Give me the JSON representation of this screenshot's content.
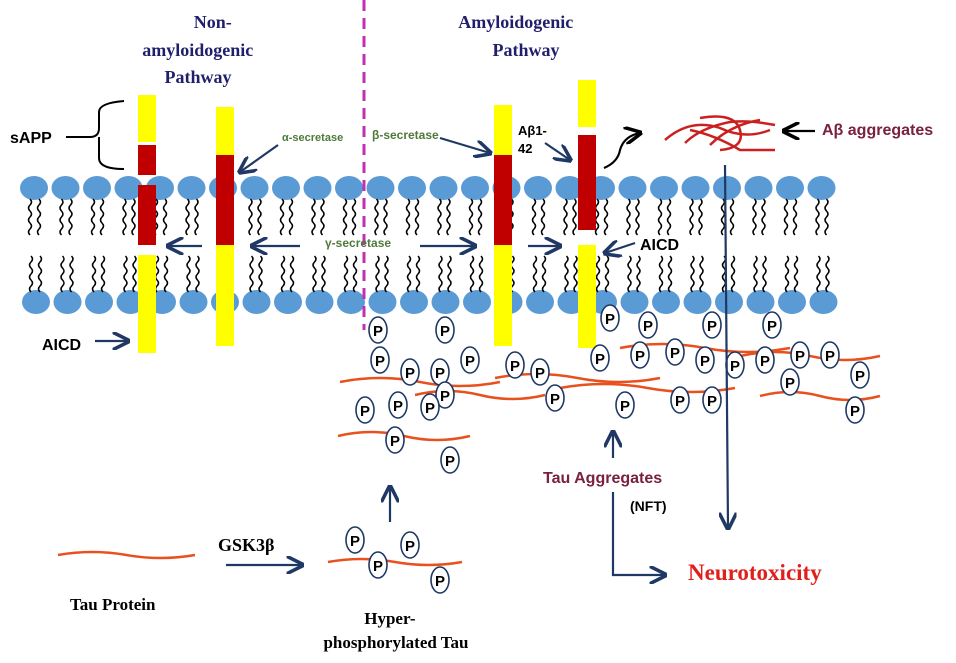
{
  "labels": {
    "non_amyloid_title": [
      "Non-",
      "amyloidogenic",
      "Pathway"
    ],
    "amyloid_title": [
      "Amyloidogenic",
      "Pathway"
    ],
    "sapp": "sAPP",
    "alpha_secretase": "α-secretase",
    "beta_secretase": "β-secretase",
    "gamma_secretase": "γ-secretase",
    "abeta142": [
      "Aβ1-",
      "42"
    ],
    "aicd_left": "AICD",
    "aicd_right": "AICD",
    "abeta_aggregates": "Aβ aggregates",
    "tau_aggregates": "Tau Aggregates",
    "nft": "(NFT)",
    "neurotoxicity": "Neurotoxicity",
    "gsk3b": "GSK3β",
    "tau_protein": "Tau Protein",
    "hyper_tau": [
      "Hyper-",
      "phosphorylated Tau"
    ],
    "phospho": "P"
  },
  "colors": {
    "title": "#1f1f6b",
    "membrane_head": "#5b9bd5",
    "app_yellow": "#ffff00",
    "app_red": "#c00000",
    "secretase": "#4f7a3a",
    "arrow": "#1f3864",
    "tau": "#e8501e",
    "aggregates_label": "#7a2040",
    "neurotoxicity": "#e0201c",
    "divider": "#c030b0"
  }
}
